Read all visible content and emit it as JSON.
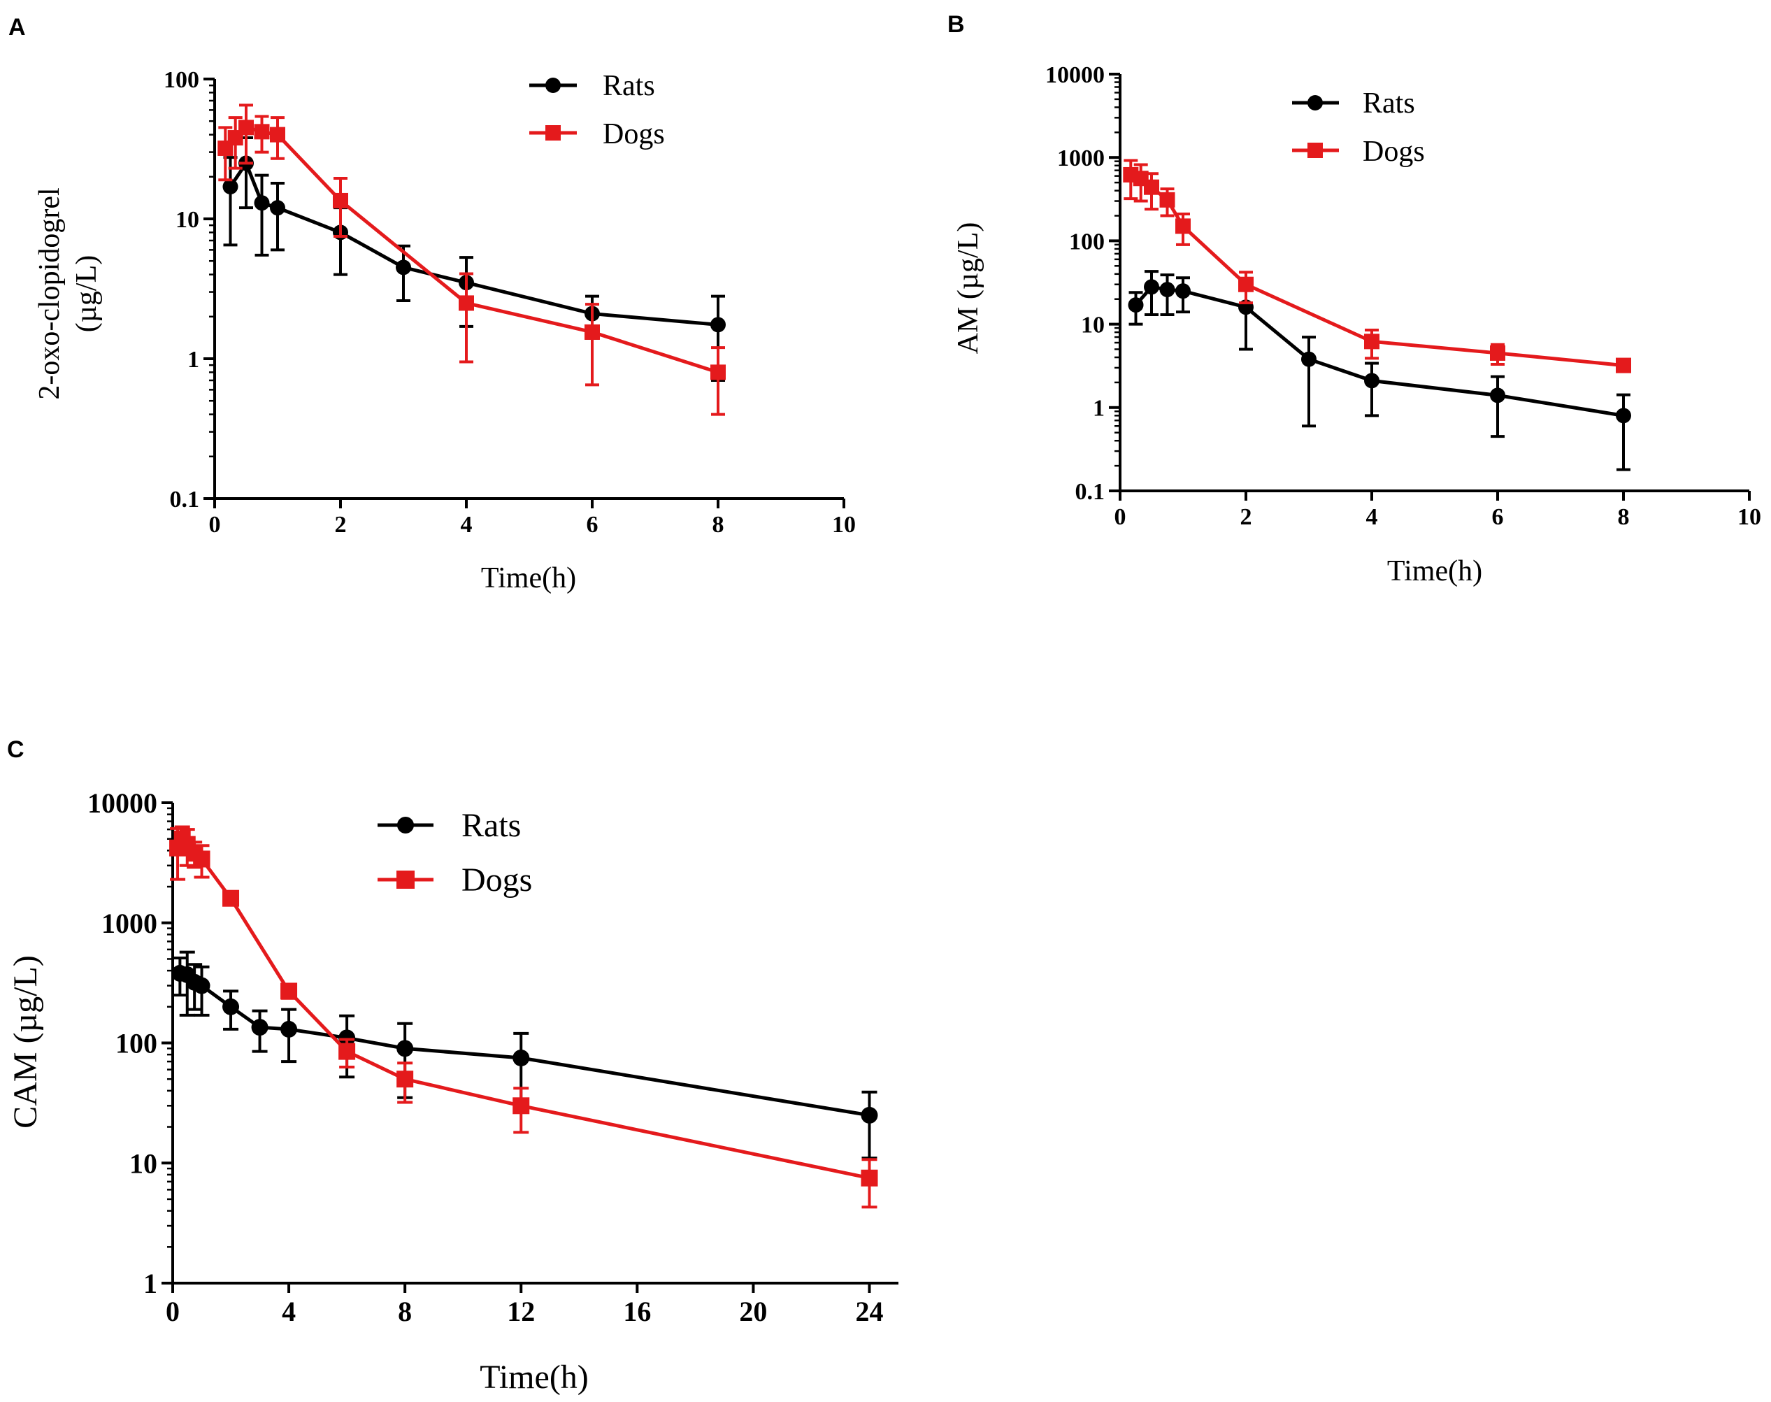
{
  "figure": {
    "background": "#ffffff"
  },
  "colors": {
    "rats": "#000000",
    "dogs": "#e41a1c",
    "axis": "#000000"
  },
  "chart_data": [
    {
      "panel": "A",
      "type": "line",
      "log_y": true,
      "xlabel": "Time(h)",
      "ylabel_lines": [
        "2-oxo-clopidogrel",
        "(µg/L)"
      ],
      "xlim": [
        0,
        10
      ],
      "ylim": [
        0.1,
        100
      ],
      "xticks": [
        0,
        2,
        4,
        6,
        8,
        10
      ],
      "xtick_labels": [
        "0",
        "2",
        "4",
        "6",
        "8",
        "10"
      ],
      "yticks": [
        0.1,
        1,
        10,
        100
      ],
      "ytick_labels": [
        "0.1",
        "1",
        "10",
        "100"
      ],
      "legend_position": "top-right",
      "series": [
        {
          "name": "Rats",
          "marker": "circle",
          "color": "#000000",
          "x": [
            0.25,
            0.5,
            0.75,
            1,
            2,
            3,
            4,
            6,
            8
          ],
          "y": [
            17,
            25,
            13,
            12,
            8,
            4.5,
            3.5,
            2.1,
            1.75
          ],
          "err": [
            10.5,
            13,
            7.5,
            6,
            4,
            1.9,
            1.8,
            0.7,
            1.05
          ]
        },
        {
          "name": "Dogs",
          "marker": "square",
          "color": "#e41a1c",
          "x": [
            0.17,
            0.33,
            0.5,
            0.75,
            1,
            2,
            4,
            6,
            8
          ],
          "y": [
            32,
            38,
            45,
            42,
            40,
            13.5,
            2.5,
            1.55,
            0.8
          ],
          "err": [
            13,
            15,
            20,
            12,
            13,
            6,
            1.55,
            0.9,
            0.4
          ]
        }
      ]
    },
    {
      "panel": "B",
      "type": "line",
      "log_y": true,
      "xlabel": "Time(h)",
      "ylabel_lines": [
        "AM (µg/L)"
      ],
      "xlim": [
        0,
        10
      ],
      "ylim": [
        0.1,
        10000
      ],
      "xticks": [
        0,
        2,
        4,
        6,
        8,
        10
      ],
      "xtick_labels": [
        "0",
        "2",
        "4",
        "6",
        "8",
        "10"
      ],
      "yticks": [
        0.1,
        1,
        10,
        100,
        1000,
        10000
      ],
      "ytick_labels": [
        "0.1",
        "1",
        "10",
        "100",
        "1000",
        "10000"
      ],
      "legend_position": "top-right",
      "series": [
        {
          "name": "Rats",
          "marker": "circle",
          "color": "#000000",
          "x": [
            0.25,
            0.5,
            0.75,
            1,
            2,
            3,
            4,
            6,
            8
          ],
          "y": [
            17,
            28,
            26,
            25,
            16,
            3.8,
            2.1,
            1.4,
            0.8
          ],
          "err": [
            7,
            15,
            13,
            11,
            11,
            3.2,
            1.3,
            0.95,
            0.62
          ]
        },
        {
          "name": "Dogs",
          "marker": "square",
          "color": "#e41a1c",
          "x": [
            0.17,
            0.33,
            0.5,
            0.75,
            1,
            2,
            4,
            6,
            8
          ],
          "y": [
            620,
            560,
            440,
            310,
            150,
            30,
            6.2,
            4.5,
            3.2
          ],
          "err": [
            300,
            260,
            200,
            110,
            60,
            12,
            2.3,
            1.2,
            0.4
          ]
        }
      ]
    },
    {
      "panel": "C",
      "type": "line",
      "log_y": true,
      "xlabel": "Time(h)",
      "ylabel_lines": [
        "CAM (µg/L)"
      ],
      "xlim": [
        0,
        25
      ],
      "ylim": [
        1,
        10000
      ],
      "xticks": [
        0,
        4,
        8,
        12,
        16,
        20,
        24
      ],
      "xtick_labels": [
        "0",
        "4",
        "8",
        "12",
        "16",
        "20",
        "24"
      ],
      "yticks": [
        1,
        10,
        100,
        1000,
        10000
      ],
      "ytick_labels": [
        "1",
        "10",
        "100",
        "1000",
        "10000"
      ],
      "legend_position": "top-left",
      "series": [
        {
          "name": "Rats",
          "marker": "circle",
          "color": "#000000",
          "x": [
            0.25,
            0.5,
            0.75,
            1,
            2,
            3,
            4,
            6,
            8,
            12,
            24
          ],
          "y": [
            380,
            370,
            320,
            300,
            200,
            135,
            130,
            110,
            90,
            75,
            25
          ],
          "err": [
            130,
            200,
            130,
            130,
            70,
            50,
            60,
            58,
            55,
            45,
            14
          ]
        },
        {
          "name": "Dogs",
          "marker": "square",
          "color": "#e41a1c",
          "x": [
            0.17,
            0.33,
            0.5,
            0.75,
            1,
            2,
            4,
            6,
            8,
            12,
            24
          ],
          "y": [
            4200,
            5000,
            4500,
            3800,
            3400,
            1600,
            270,
            85,
            50,
            30,
            7.5
          ],
          "err": [
            1900,
            1300,
            1500,
            900,
            1000,
            150,
            35,
            22,
            18,
            12,
            3.2
          ]
        }
      ]
    }
  ]
}
